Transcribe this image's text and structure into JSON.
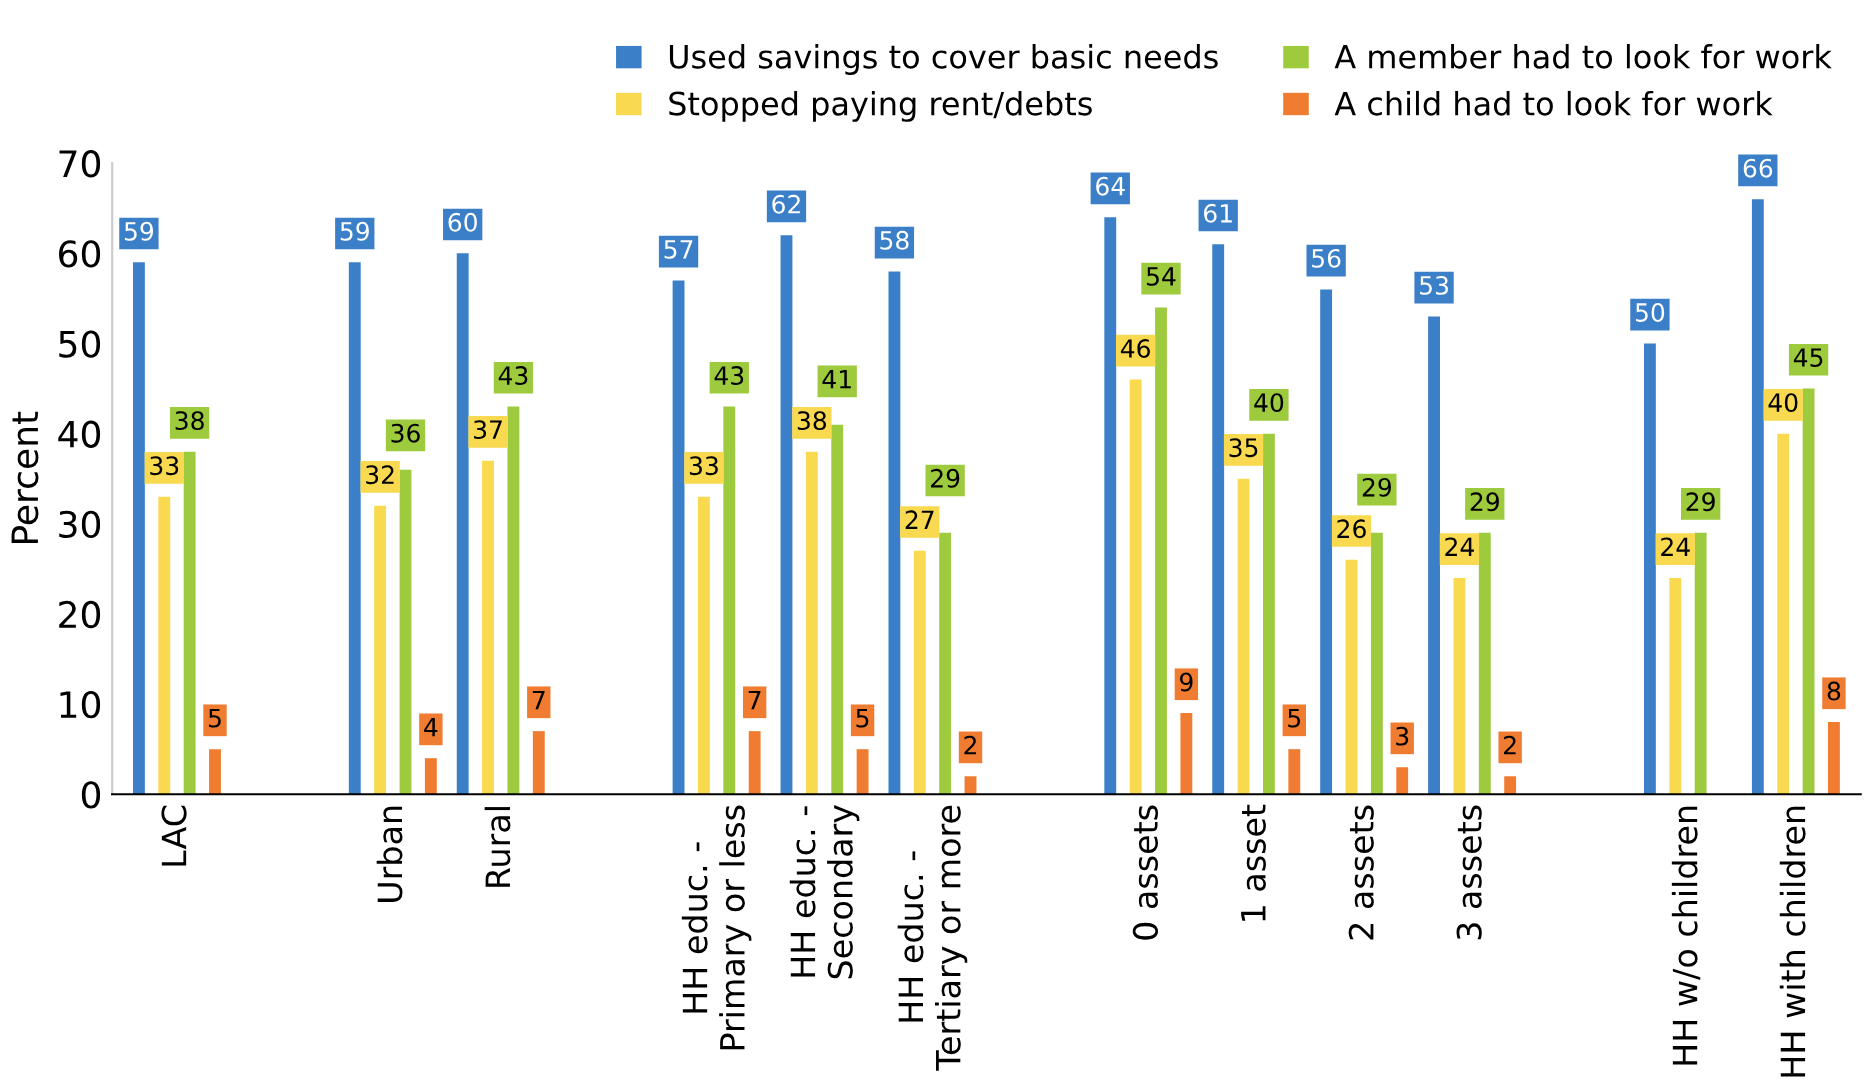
{
  "chart_data": {
    "type": "bar",
    "ylabel": "Percent",
    "categories": [
      "LAC",
      null,
      "Urban",
      "Rural",
      null,
      "HH educ. -\nPrimary or less",
      "HH educ. -\nSecondary",
      "HH educ. -\nTertiary or more",
      null,
      "0 assets",
      "1 asset",
      "2 assets",
      "3 assets",
      null,
      "HH w/o children",
      "HH with children"
    ],
    "series": [
      {
        "name": "Used savings to cover basic needs",
        "color": "#3b7fc8",
        "values": [
          59,
          null,
          59,
          60,
          null,
          57,
          62,
          58,
          null,
          64,
          61,
          56,
          53,
          null,
          50,
          66
        ]
      },
      {
        "name": "Stopped paying rent/debts",
        "color": "#f8d94f",
        "values": [
          33,
          null,
          32,
          37,
          null,
          33,
          38,
          27,
          null,
          46,
          35,
          26,
          24,
          null,
          24,
          40
        ]
      },
      {
        "name": "A member had to look for work",
        "color": "#9dcb3d",
        "values": [
          38,
          null,
          36,
          43,
          null,
          43,
          41,
          29,
          null,
          54,
          40,
          29,
          29,
          null,
          29,
          45
        ]
      },
      {
        "name": "A child had to look for work",
        "color": "#f07c31",
        "values": [
          5,
          null,
          4,
          7,
          null,
          7,
          5,
          2,
          null,
          9,
          5,
          3,
          2,
          null,
          null,
          8
        ]
      }
    ],
    "ylim": [
      0,
      70
    ],
    "yticks": [
      0,
      10,
      20,
      30,
      40,
      50,
      60,
      70
    ],
    "data_labels": true,
    "legend": "top right",
    "grid": false
  }
}
